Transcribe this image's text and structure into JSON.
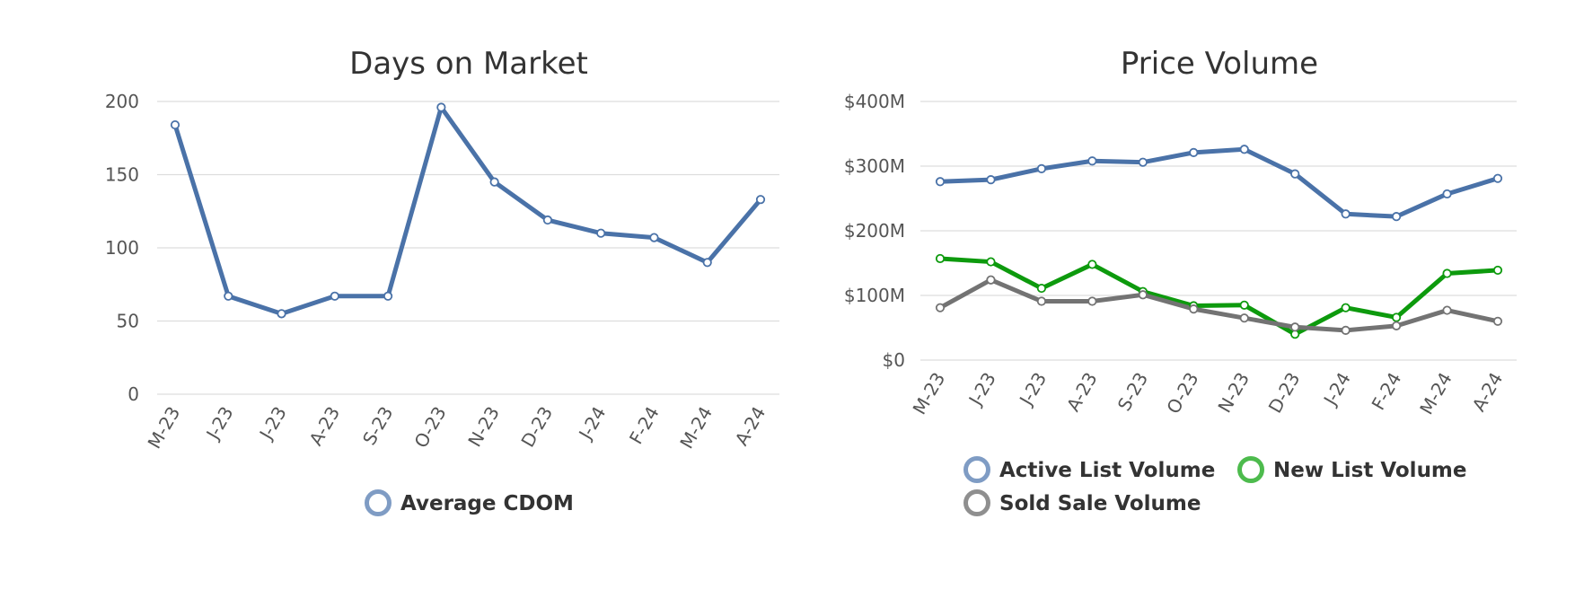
{
  "chart_data": [
    {
      "type": "line",
      "title": "Days on Market",
      "xlabel": "",
      "ylabel": "",
      "categories": [
        "M-23",
        "J-23",
        "J-23",
        "A-23",
        "S-23",
        "O-23",
        "N-23",
        "D-23",
        "J-24",
        "F-24",
        "M-24",
        "A-24"
      ],
      "y_ticks": [
        "200",
        "150",
        "100",
        "50",
        "0"
      ],
      "y_tick_values": [
        200,
        150,
        100,
        50,
        0
      ],
      "ylim": [
        0,
        200
      ],
      "grid": true,
      "legend_position": "bottom",
      "series": [
        {
          "name": "Average CDOM",
          "color": "#4a72a8",
          "marker_color": "#4a72a8",
          "legend_color": "#7f9cc4",
          "values": [
            184,
            67,
            55,
            67,
            67,
            196,
            145,
            119,
            110,
            107,
            90,
            133
          ]
        }
      ]
    },
    {
      "type": "line",
      "title": "Price Volume",
      "xlabel": "",
      "ylabel": "",
      "categories": [
        "M-23",
        "J-23",
        "J-23",
        "A-23",
        "S-23",
        "O-23",
        "N-23",
        "D-23",
        "J-24",
        "F-24",
        "M-24",
        "A-24"
      ],
      "y_ticks": [
        "$400M",
        "$300M",
        "$200M",
        "$100M",
        "$0"
      ],
      "y_tick_values": [
        400,
        300,
        200,
        100,
        0
      ],
      "y_unit": "$M",
      "ylim": [
        0,
        400
      ],
      "grid": true,
      "legend_position": "bottom",
      "series": [
        {
          "name": "Active List Volume",
          "color": "#4a72a8",
          "legend_color": "#7f9cc4",
          "values": [
            276,
            279,
            296,
            308,
            306,
            321,
            326,
            288,
            226,
            222,
            257,
            281
          ]
        },
        {
          "name": "New List Volume",
          "color": "#0d9a0d",
          "legend_color": "#4dbb4d",
          "values": [
            157,
            152,
            111,
            148,
            106,
            84,
            85,
            40,
            81,
            66,
            134,
            139
          ]
        },
        {
          "name": "Sold Sale Volume",
          "color": "#737373",
          "legend_color": "#8f8f8f",
          "values": [
            81,
            124,
            91,
            91,
            101,
            79,
            65,
            51,
            46,
            53,
            77,
            60
          ]
        }
      ]
    }
  ]
}
